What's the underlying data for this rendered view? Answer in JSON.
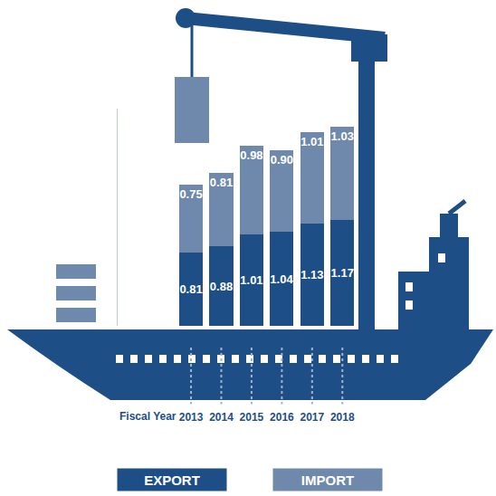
{
  "chart_data": {
    "type": "bar",
    "stacked": true,
    "data_labels": true,
    "tick_labels": "x",
    "xlabel": "Fiscal Year",
    "categories": [
      "2013",
      "2014",
      "2015",
      "2016",
      "2017",
      "2018"
    ],
    "series": [
      {
        "name": "EXPORT",
        "color": "#1d4f86",
        "values": [
          0.81,
          0.88,
          1.01,
          1.04,
          1.13,
          1.17
        ]
      },
      {
        "name": "IMPORT",
        "color": "#6f89ad",
        "values": [
          0.75,
          0.81,
          0.98,
          0.9,
          1.01,
          1.03
        ],
        "value_labels": [
          "0.75",
          "0.81",
          "0.98",
          "0.90",
          "1.01",
          "1.03"
        ]
      }
    ],
    "ylim": [
      0,
      2.4
    ],
    "yticks": [],
    "legend": "bottom"
  }
}
